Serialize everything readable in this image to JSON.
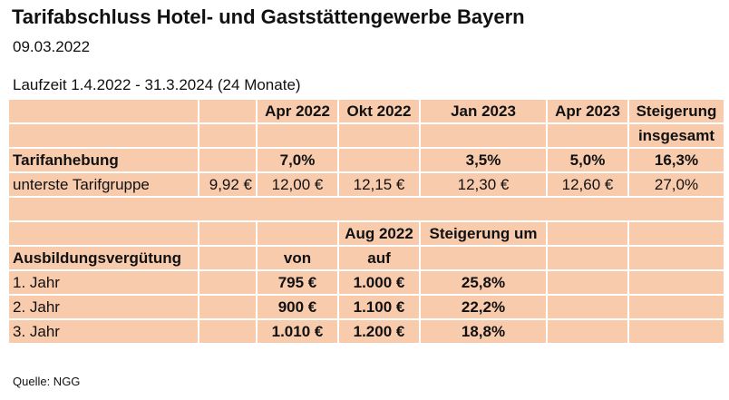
{
  "header": {
    "title": "Tarifabschluss Hotel- und Gaststättengewerbe Bayern",
    "date": "09.03.2022",
    "runtime": "Laufzeit 1.4.2022 - 31.3.2024 (24 Monate)"
  },
  "tariff": {
    "header1": [
      "",
      "",
      "Apr 2022",
      "Okt 2022",
      "Jan 2023",
      "Apr 2023",
      "Steigerung"
    ],
    "header2": [
      "",
      "",
      "",
      "",
      "",
      "",
      "insgesamt"
    ],
    "raise": [
      "Tarifanhebung",
      "",
      "7,0%",
      "",
      "3,5%",
      "5,0%",
      "16,3%"
    ],
    "lowest": [
      "unterste Tarifgruppe",
      "9,92 €",
      "12,00 €",
      "12,15 €",
      "12,30 €",
      "12,60 €",
      "27,0%"
    ]
  },
  "training": {
    "header1": [
      "",
      "",
      "",
      "Aug 2022",
      "Steigerung um",
      "",
      ""
    ],
    "header2": [
      "Ausbildungsvergütung",
      "",
      "von",
      "auf",
      "",
      "",
      ""
    ],
    "rows": [
      [
        "1. Jahr",
        "",
        "795 €",
        "1.000 €",
        "25,8%",
        "",
        ""
      ],
      [
        "2. Jahr",
        "",
        "900 €",
        "1.100 €",
        "22,2%",
        "",
        ""
      ],
      [
        "3. Jahr",
        "",
        "1.010 €",
        "1.200 €",
        "18,8%",
        "",
        ""
      ]
    ]
  },
  "footer": {
    "source": "Quelle: NGG"
  }
}
